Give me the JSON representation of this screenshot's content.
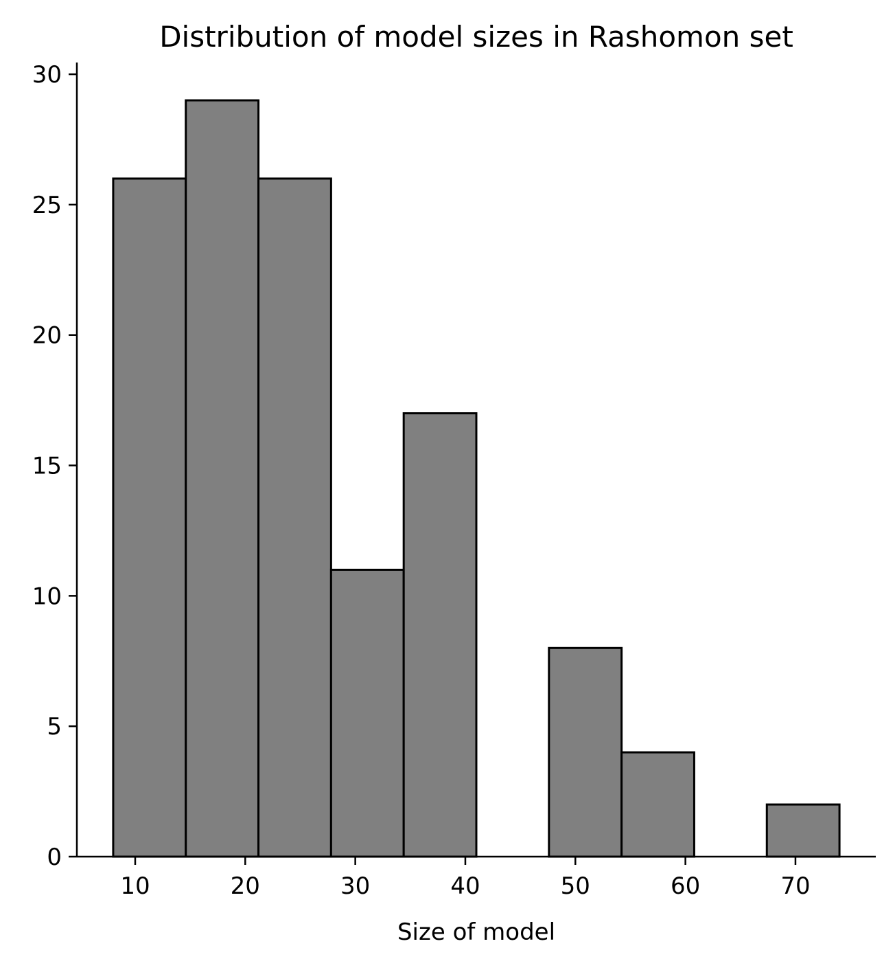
{
  "chart_data": {
    "type": "bar",
    "title": "Distribution of model sizes in Rashomon set",
    "xlabel": "Size of model",
    "ylabel": "",
    "bins": [
      {
        "x0": 8.0,
        "x1": 14.6,
        "count": 26
      },
      {
        "x0": 14.6,
        "x1": 21.2,
        "count": 29
      },
      {
        "x0": 21.2,
        "x1": 27.8,
        "count": 26
      },
      {
        "x0": 27.8,
        "x1": 34.4,
        "count": 11
      },
      {
        "x0": 34.4,
        "x1": 41.0,
        "count": 17
      },
      {
        "x0": 41.0,
        "x1": 47.6,
        "count": 0
      },
      {
        "x0": 47.6,
        "x1": 54.2,
        "count": 8
      },
      {
        "x0": 54.2,
        "x1": 60.8,
        "count": 4
      },
      {
        "x0": 60.8,
        "x1": 67.4,
        "count": 0
      },
      {
        "x0": 67.4,
        "x1": 74.0,
        "count": 2
      }
    ],
    "xlim": [
      4.7,
      77.3
    ],
    "ylim": [
      0,
      30.45
    ],
    "xticks": [
      "10",
      "20",
      "30",
      "40",
      "50",
      "60",
      "70"
    ],
    "yticks": [
      "0",
      "5",
      "10",
      "15",
      "20",
      "25",
      "30"
    ],
    "bar_color": "#808080",
    "edge_color": "#000000",
    "grid": false,
    "legend": "none"
  }
}
